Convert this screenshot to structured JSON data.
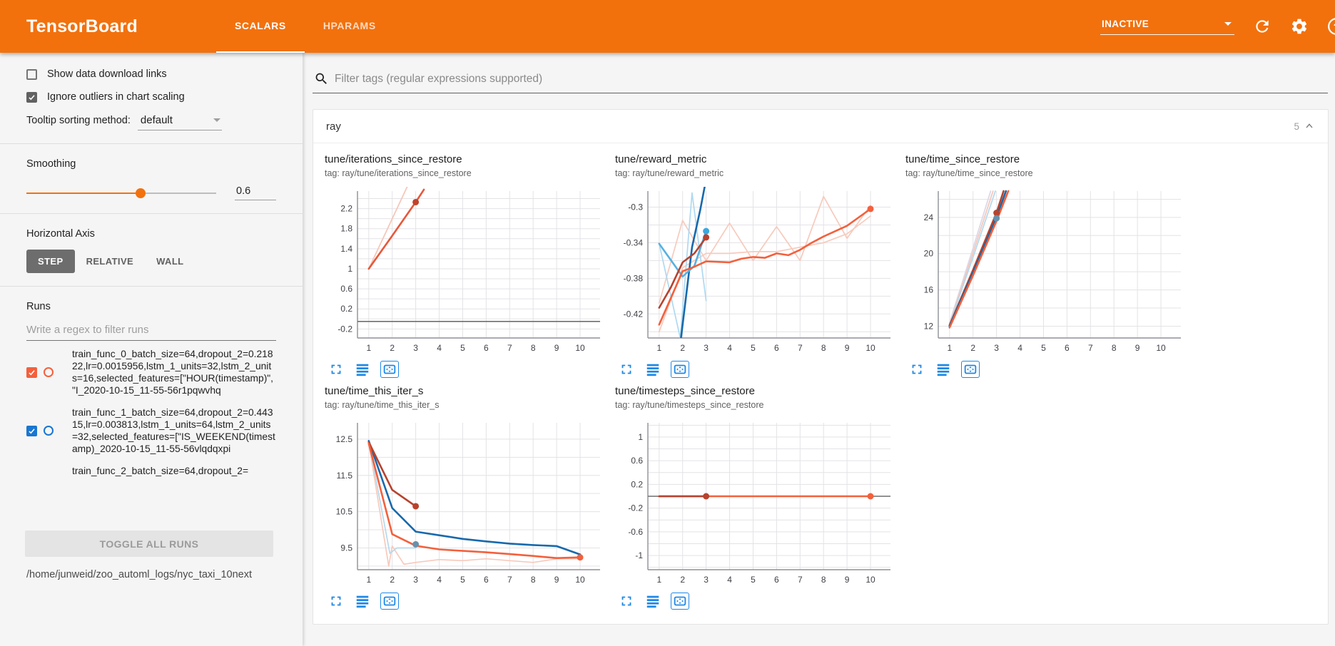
{
  "header": {
    "title": "TensorBoard",
    "tabs": [
      {
        "label": "SCALARS",
        "active": true
      },
      {
        "label": "HPARAMS",
        "active": false
      }
    ],
    "status_dropdown": "INACTIVE",
    "icons": [
      "dropdown-caret",
      "refresh-icon",
      "settings-gear-icon",
      "help-icon"
    ]
  },
  "sidebar": {
    "checkboxes": [
      {
        "label": "Show data download links",
        "checked": false
      },
      {
        "label": "Ignore outliers in chart scaling",
        "checked": true
      }
    ],
    "tooltip_sorting": {
      "label": "Tooltip sorting method:",
      "value": "default"
    },
    "smoothing": {
      "label": "Smoothing",
      "value": "0.6",
      "percent": 60
    },
    "horizontal_axis": {
      "label": "Horizontal Axis",
      "options": [
        "STEP",
        "RELATIVE",
        "WALL"
      ],
      "selected": "STEP"
    },
    "runs": {
      "label": "Runs",
      "filter_placeholder": "Write a regex to filter runs",
      "items": [
        {
          "name": "train_func_0_batch_size=64,dropout_2=0.21822,lr=0.0015956,lstm_1_units=32,lstm_2_units=16,selected_features=[\"HOUR(timestamp)\", \"I_2020-10-15_11-55-56r1pqwvhq",
          "checked": true,
          "color": "#f4603c",
          "partial": false
        },
        {
          "name": "train_func_1_batch_size=64,dropout_2=0.44315,lr=0.003813,lstm_1_units=64,lstm_2_units=32,selected_features=[\"IS_WEEKEND(timestamp)_2020-10-15_11-55-56vlqdqxpi",
          "checked": true,
          "color": "#1976d2",
          "partial": false
        },
        {
          "name": "train_func_2_batch_size=64,dropout_2=",
          "checked": true,
          "color": "#bdbdbd",
          "partial": true
        }
      ],
      "toggle_all_label": "TOGGLE ALL RUNS",
      "log_path": "/home/junweid/zoo_automl_logs/nyc_taxi_10next"
    }
  },
  "main": {
    "filter_placeholder": "Filter tags (regular expressions supported)",
    "section": {
      "name": "ray",
      "count": "5"
    }
  },
  "chart_data": [
    {
      "type": "line",
      "title": "tune/iterations_since_restore",
      "tag": "tag: ray/tune/iterations_since_restore",
      "xlim": [
        0.52,
        10.85
      ],
      "xticks": [
        1,
        2,
        3,
        4,
        5,
        6,
        7,
        8,
        9,
        10
      ],
      "ylim": [
        -0.38,
        2.55
      ],
      "yticks": [
        "2.2",
        "1.8",
        "1.4",
        "1",
        "0.6",
        "0.2",
        "-0.2"
      ],
      "minor": 0.2,
      "series": [
        {
          "name": "train_func_0 raw",
          "color": "#f6c7b9",
          "width": 1.8,
          "points": [
            [
              1,
              1
            ],
            [
              2,
              2
            ],
            [
              3,
              3
            ]
          ]
        },
        {
          "name": "train_func_0 smoothed",
          "color": "#e8573a",
          "width": 2.6,
          "points": [
            [
              1,
              1
            ],
            [
              2,
              1.66
            ],
            [
              3,
              2.33
            ],
            [
              3.35,
              2.58
            ]
          ]
        },
        {
          "name": "constant baseline",
          "color": "#6e6e6e",
          "width": 1.6,
          "points": [
            [
              0.52,
              -0.05
            ],
            [
              10.85,
              -0.05
            ]
          ]
        }
      ],
      "dots": [
        {
          "x": 3,
          "y": 2.33,
          "color": "#c0432b"
        }
      ]
    },
    {
      "type": "line",
      "title": "tune/reward_metric",
      "tag": "tag: ray/tune/reward_metric",
      "xlim": [
        0.52,
        10.85
      ],
      "xticks": [
        1,
        2,
        3,
        4,
        5,
        6,
        7,
        8,
        9,
        10
      ],
      "ylim": [
        -0.447,
        -0.282
      ],
      "yticks": [
        "-0.3",
        "-0.34",
        "-0.38",
        "-0.42"
      ],
      "minor": 0.02,
      "series": [
        {
          "name": "raw pink",
          "color": "#f7cabc",
          "width": 1.7,
          "points": [
            [
              1,
              -0.408
            ],
            [
              2,
              -0.315
            ],
            [
              3,
              -0.36
            ],
            [
              4,
              -0.318
            ],
            [
              5,
              -0.36
            ],
            [
              6,
              -0.322
            ],
            [
              7,
              -0.36
            ],
            [
              8,
              -0.288
            ],
            [
              9,
              -0.335
            ],
            [
              10,
              -0.298
            ]
          ]
        },
        {
          "name": "raw pink 2",
          "color": "#f7cabc",
          "width": 1.7,
          "points": [
            [
              1,
              -0.44
            ],
            [
              2,
              -0.368
            ],
            [
              3,
              -0.352
            ],
            [
              4,
              -0.352
            ],
            [
              5,
              -0.35
            ],
            [
              6,
              -0.35
            ],
            [
              7,
              -0.345
            ],
            [
              8,
              -0.34
            ],
            [
              9,
              -0.33
            ],
            [
              10,
              -0.31
            ]
          ]
        },
        {
          "name": "raw light blue",
          "color": "#aed9f1",
          "width": 1.7,
          "points": [
            [
              1,
              -0.341
            ],
            [
              1.9,
              -0.447
            ],
            [
              2.4,
              -0.284
            ],
            [
              3,
              -0.405
            ]
          ]
        },
        {
          "name": "dark blue smoothed",
          "color": "#1769ac",
          "width": 2.6,
          "points": [
            [
              1.93,
              -0.447
            ],
            [
              2.4,
              -0.345
            ],
            [
              2.75,
              -0.303
            ],
            [
              3.1,
              -0.255
            ]
          ]
        },
        {
          "name": "light blue smoothed",
          "color": "#56b1e1",
          "width": 2.6,
          "points": [
            [
              1,
              -0.341
            ],
            [
              2,
              -0.378
            ],
            [
              2.5,
              -0.366
            ],
            [
              3,
              -0.327
            ]
          ]
        },
        {
          "name": "dark red smoothed",
          "color": "#b6432e",
          "width": 2.6,
          "points": [
            [
              1,
              -0.413
            ],
            [
              1.5,
              -0.39
            ],
            [
              2,
              -0.362
            ],
            [
              2.5,
              -0.352
            ],
            [
              3,
              -0.334
            ]
          ]
        },
        {
          "name": "orange smoothed",
          "color": "#f4603c",
          "width": 2.6,
          "points": [
            [
              1,
              -0.432
            ],
            [
              1.5,
              -0.402
            ],
            [
              2,
              -0.372
            ],
            [
              2.5,
              -0.367
            ],
            [
              3,
              -0.361
            ],
            [
              4,
              -0.362
            ],
            [
              4.5,
              -0.358
            ],
            [
              5,
              -0.356
            ],
            [
              5.5,
              -0.357
            ],
            [
              6,
              -0.352
            ],
            [
              6.5,
              -0.354
            ],
            [
              7,
              -0.348
            ],
            [
              7.5,
              -0.34
            ],
            [
              8,
              -0.333
            ],
            [
              9,
              -0.321
            ],
            [
              10,
              -0.302
            ]
          ]
        }
      ],
      "dots": [
        {
          "x": 3,
          "y": -0.327,
          "color": "#39a8e0"
        },
        {
          "x": 3,
          "y": -0.334,
          "color": "#b6432e"
        },
        {
          "x": 10,
          "y": -0.302,
          "color": "#f4603c"
        }
      ]
    },
    {
      "type": "line",
      "title": "tune/time_since_restore",
      "tag": "tag: ray/tune/time_since_restore",
      "xlim": [
        0.52,
        10.85
      ],
      "xticks": [
        1,
        2,
        3,
        4,
        5,
        6,
        7,
        8,
        9,
        10
      ],
      "ylim": [
        10.7,
        26.9
      ],
      "yticks": [
        "24",
        "20",
        "16",
        "12"
      ],
      "minor": 2,
      "series": [
        {
          "name": "raw lavender",
          "color": "#dcd8e8",
          "width": 1.8,
          "points": [
            [
              1,
              12.35
            ],
            [
              2,
              20.6
            ],
            [
              2.75,
              26.9
            ]
          ]
        },
        {
          "name": "raw pink",
          "color": "#f6c7b9",
          "width": 1.8,
          "points": [
            [
              1,
              12.3
            ],
            [
              2,
              20.1
            ],
            [
              2.85,
              26.9
            ]
          ]
        },
        {
          "name": "raw light blue",
          "color": "#b5d9ee",
          "width": 1.8,
          "points": [
            [
              1,
              12.2
            ],
            [
              2,
              19.6
            ],
            [
              2.95,
              26.9
            ]
          ]
        },
        {
          "name": "dark red smoothed",
          "color": "#b6432e",
          "width": 2.6,
          "points": [
            [
              1,
              12.1
            ],
            [
              2,
              18.2
            ],
            [
              3,
              24.5
            ],
            [
              3.3,
              26.9
            ]
          ]
        },
        {
          "name": "dark blue smoothed",
          "color": "#1769ac",
          "width": 2.6,
          "points": [
            [
              1,
              12.0
            ],
            [
              2,
              17.9
            ],
            [
              3,
              24.0
            ],
            [
              3.4,
              26.9
            ]
          ]
        },
        {
          "name": "orange smoothed",
          "color": "#f4603c",
          "width": 2.6,
          "points": [
            [
              1,
              11.85
            ],
            [
              2,
              17.6
            ],
            [
              3,
              23.6
            ],
            [
              3.5,
              26.9
            ]
          ]
        }
      ],
      "dots": [
        {
          "x": 3,
          "y": 24.5,
          "color": "#b6432e"
        },
        {
          "x": 3,
          "y": 23.9,
          "color": "#6791ad"
        }
      ]
    },
    {
      "type": "line",
      "title": "tune/time_this_iter_s",
      "tag": "tag: ray/tune/time_this_iter_s",
      "xlim": [
        0.52,
        10.85
      ],
      "xticks": [
        1,
        2,
        3,
        4,
        5,
        6,
        7,
        8,
        9,
        10
      ],
      "ylim": [
        8.9,
        12.95
      ],
      "yticks": [
        "12.5",
        "11.5",
        "10.5",
        "9.5"
      ],
      "minor": 0.5,
      "series": [
        {
          "name": "raw pink",
          "color": "#f7cabc",
          "width": 1.7,
          "points": [
            [
              1,
              12.4
            ],
            [
              1.85,
              9.0
            ],
            [
              2,
              9.55
            ],
            [
              2.5,
              9.05
            ],
            [
              3,
              9.1
            ],
            [
              4,
              9.18
            ],
            [
              5,
              9.15
            ],
            [
              6,
              9.2
            ],
            [
              7,
              9.15
            ],
            [
              8,
              9.1
            ],
            [
              9,
              9.2
            ],
            [
              10,
              9.2
            ]
          ]
        },
        {
          "name": "raw light blue",
          "color": "#b5d9ee",
          "width": 1.7,
          "points": [
            [
              1,
              12.45
            ],
            [
              1.9,
              9.35
            ],
            [
              2.2,
              9.5
            ],
            [
              3,
              9.5
            ]
          ]
        },
        {
          "name": "dark blue smoothed",
          "color": "#1769ac",
          "width": 2.6,
          "points": [
            [
              1,
              12.45
            ],
            [
              2,
              10.6
            ],
            [
              3,
              9.95
            ],
            [
              4,
              9.85
            ],
            [
              5,
              9.75
            ],
            [
              6,
              9.68
            ],
            [
              7,
              9.62
            ],
            [
              8,
              9.58
            ],
            [
              9,
              9.55
            ],
            [
              10,
              9.32
            ]
          ]
        },
        {
          "name": "dark red smoothed",
          "color": "#b6432e",
          "width": 2.6,
          "points": [
            [
              1,
              12.42
            ],
            [
              2,
              11.1
            ],
            [
              3,
              10.65
            ]
          ]
        },
        {
          "name": "orange smoothed",
          "color": "#f4603c",
          "width": 2.6,
          "points": [
            [
              1,
              12.38
            ],
            [
              2,
              9.88
            ],
            [
              3,
              9.56
            ],
            [
              4,
              9.46
            ],
            [
              5,
              9.42
            ],
            [
              6,
              9.38
            ],
            [
              7,
              9.33
            ],
            [
              8,
              9.28
            ],
            [
              9,
              9.22
            ],
            [
              10,
              9.24
            ]
          ]
        }
      ],
      "dots": [
        {
          "x": 3,
          "y": 10.65,
          "color": "#b6432e"
        },
        {
          "x": 3,
          "y": 9.6,
          "color": "#6791ad"
        },
        {
          "x": 10,
          "y": 9.24,
          "color": "#f4603c"
        }
      ]
    },
    {
      "type": "line",
      "title": "tune/timesteps_since_restore",
      "tag": "tag: ray/tune/timesteps_since_restore",
      "xlim": [
        0.52,
        10.85
      ],
      "xticks": [
        1,
        2,
        3,
        4,
        5,
        6,
        7,
        8,
        9,
        10
      ],
      "ylim": [
        -1.24,
        1.24
      ],
      "yticks": [
        "1",
        "0.6",
        "0.2",
        "-0.2",
        "-0.6",
        "-1"
      ],
      "minor": 0.2,
      "series": [
        {
          "name": "constant baseline",
          "color": "#6e6e6e",
          "width": 1.6,
          "points": [
            [
              0.52,
              0
            ],
            [
              10.85,
              0
            ]
          ]
        },
        {
          "name": "orange smoothed",
          "color": "#f4603c",
          "width": 2.6,
          "points": [
            [
              1,
              0
            ],
            [
              10,
              0
            ]
          ]
        },
        {
          "name": "dark red smoothed",
          "color": "#b6432e",
          "width": 2.6,
          "points": [
            [
              1,
              0
            ],
            [
              3,
              0
            ]
          ]
        }
      ],
      "dots": [
        {
          "x": 3,
          "y": 0,
          "color": "#b6432e"
        },
        {
          "x": 10,
          "y": 0,
          "color": "#f4603c"
        }
      ]
    }
  ]
}
